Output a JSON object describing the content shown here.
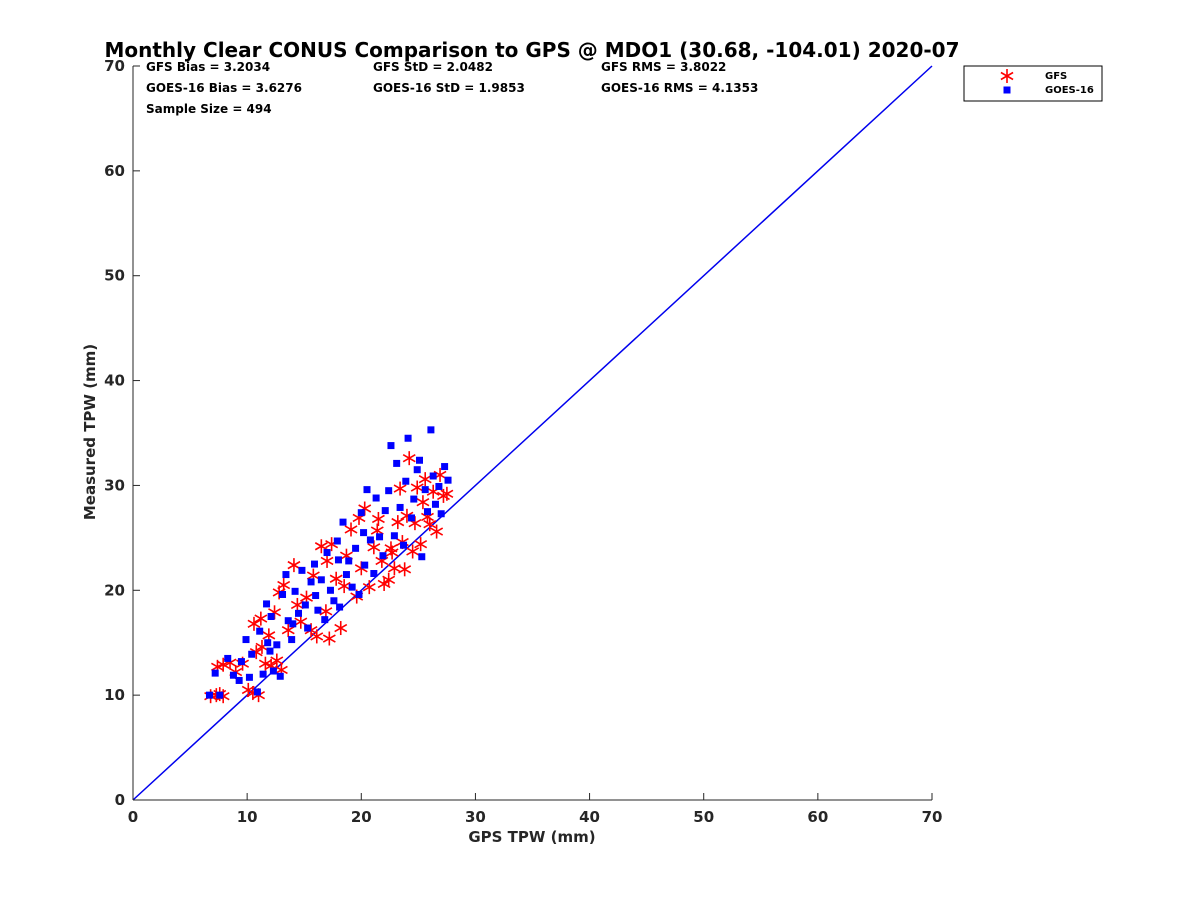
{
  "chart_data": {
    "type": "scatter",
    "title": "Monthly Clear CONUS Comparison to GPS @ MDO1 (30.68, -104.01) 2020-07",
    "xlabel": "GPS TPW (mm)",
    "ylabel": "Measured TPW (mm)",
    "xlim": [
      0,
      70
    ],
    "ylim": [
      0,
      70
    ],
    "xticks": [
      0,
      10,
      20,
      30,
      40,
      50,
      60,
      70
    ],
    "yticks": [
      0,
      10,
      20,
      30,
      40,
      50,
      60,
      70
    ],
    "grid": false,
    "legend_position": "top-right",
    "stats": [
      [
        "GFS Bias = 3.2034",
        "GFS StD = 2.0482",
        "GFS RMS = 3.8022"
      ],
      [
        "GOES-16 Bias = 3.6276",
        "GOES-16 StD = 1.9853",
        "GOES-16 RMS = 4.1353"
      ],
      [
        "Sample Size = 494"
      ]
    ],
    "reference_line": {
      "x": [
        0,
        70
      ],
      "y": [
        0,
        70
      ],
      "color": "#0000ee"
    },
    "series": [
      {
        "name": "GFS",
        "marker": "asterisk",
        "color": "#ff0000",
        "points": [
          [
            6.8,
            9.9
          ],
          [
            7.3,
            10.0
          ],
          [
            7.6,
            10.1
          ],
          [
            7.9,
            9.9
          ],
          [
            7.4,
            12.7
          ],
          [
            7.9,
            12.9
          ],
          [
            8.5,
            13.1
          ],
          [
            9.0,
            12.2
          ],
          [
            9.6,
            13.0
          ],
          [
            10.1,
            10.5
          ],
          [
            10.5,
            10.2
          ],
          [
            11.0,
            10.0
          ],
          [
            10.8,
            14.1
          ],
          [
            11.3,
            14.6
          ],
          [
            11.6,
            13.0
          ],
          [
            12.1,
            12.8
          ],
          [
            12.6,
            13.3
          ],
          [
            13.0,
            12.4
          ],
          [
            10.6,
            16.8
          ],
          [
            11.2,
            17.3
          ],
          [
            11.9,
            15.7
          ],
          [
            12.4,
            17.9
          ],
          [
            12.8,
            19.8
          ],
          [
            13.2,
            20.5
          ],
          [
            13.6,
            16.2
          ],
          [
            14.1,
            22.4
          ],
          [
            14.7,
            17.0
          ],
          [
            15.2,
            19.3
          ],
          [
            15.6,
            16.2
          ],
          [
            16.1,
            15.6
          ],
          [
            16.5,
            24.2
          ],
          [
            16.9,
            18.0
          ],
          [
            17.2,
            15.4
          ],
          [
            17.4,
            24.4
          ],
          [
            17.8,
            21.1
          ],
          [
            18.2,
            16.4
          ],
          [
            18.7,
            23.3
          ],
          [
            19.1,
            25.8
          ],
          [
            19.6,
            19.4
          ],
          [
            20.0,
            22.1
          ],
          [
            20.3,
            27.8
          ],
          [
            20.7,
            20.3
          ],
          [
            21.1,
            24.1
          ],
          [
            21.4,
            25.7
          ],
          [
            21.8,
            22.8
          ],
          [
            22.0,
            20.6
          ],
          [
            22.4,
            21.0
          ],
          [
            22.7,
            23.6
          ],
          [
            22.9,
            22.1
          ],
          [
            23.2,
            26.5
          ],
          [
            23.4,
            29.7
          ],
          [
            23.6,
            24.6
          ],
          [
            23.8,
            22.0
          ],
          [
            24.0,
            27.1
          ],
          [
            24.2,
            32.6
          ],
          [
            24.5,
            23.7
          ],
          [
            24.7,
            26.4
          ],
          [
            24.9,
            29.8
          ],
          [
            25.2,
            24.4
          ],
          [
            25.4,
            28.4
          ],
          [
            25.6,
            30.6
          ],
          [
            25.8,
            27.0
          ],
          [
            26.0,
            26.3
          ],
          [
            26.3,
            29.4
          ],
          [
            26.6,
            25.6
          ],
          [
            26.9,
            31.0
          ],
          [
            27.2,
            29.0
          ],
          [
            27.5,
            29.2
          ],
          [
            21.5,
            26.8
          ],
          [
            22.6,
            24.0
          ],
          [
            19.8,
            26.9
          ],
          [
            18.5,
            20.4
          ],
          [
            17.0,
            22.8
          ],
          [
            15.8,
            21.4
          ],
          [
            14.4,
            18.6
          ]
        ]
      },
      {
        "name": "GOES-16",
        "marker": "square",
        "color": "#0000ff",
        "points": [
          [
            6.7,
            10.0
          ],
          [
            7.6,
            10.0
          ],
          [
            7.2,
            12.1
          ],
          [
            8.3,
            13.5
          ],
          [
            8.8,
            11.9
          ],
          [
            9.3,
            11.4
          ],
          [
            9.5,
            13.2
          ],
          [
            9.9,
            15.3
          ],
          [
            10.2,
            11.7
          ],
          [
            10.4,
            13.9
          ],
          [
            10.9,
            10.3
          ],
          [
            11.1,
            16.1
          ],
          [
            11.4,
            12.0
          ],
          [
            11.7,
            18.7
          ],
          [
            11.8,
            15.0
          ],
          [
            12.1,
            17.5
          ],
          [
            12.3,
            12.3
          ],
          [
            12.6,
            14.8
          ],
          [
            12.9,
            11.8
          ],
          [
            13.1,
            19.6
          ],
          [
            13.4,
            21.5
          ],
          [
            13.6,
            17.1
          ],
          [
            13.9,
            15.3
          ],
          [
            14.2,
            19.9
          ],
          [
            14.5,
            17.8
          ],
          [
            14.8,
            21.9
          ],
          [
            15.1,
            18.6
          ],
          [
            15.3,
            16.4
          ],
          [
            15.6,
            20.8
          ],
          [
            15.9,
            22.5
          ],
          [
            16.2,
            18.1
          ],
          [
            16.5,
            21.0
          ],
          [
            16.8,
            17.2
          ],
          [
            17.0,
            23.6
          ],
          [
            17.3,
            20.0
          ],
          [
            17.6,
            19.0
          ],
          [
            17.9,
            24.7
          ],
          [
            18.1,
            18.4
          ],
          [
            18.4,
            26.5
          ],
          [
            18.7,
            21.5
          ],
          [
            18.9,
            22.8
          ],
          [
            19.2,
            20.3
          ],
          [
            19.5,
            24.0
          ],
          [
            19.8,
            19.6
          ],
          [
            20.0,
            27.4
          ],
          [
            20.3,
            22.4
          ],
          [
            20.5,
            29.6
          ],
          [
            20.8,
            24.8
          ],
          [
            21.1,
            21.6
          ],
          [
            21.3,
            28.8
          ],
          [
            21.6,
            25.1
          ],
          [
            21.9,
            23.3
          ],
          [
            22.1,
            27.6
          ],
          [
            22.4,
            29.5
          ],
          [
            22.6,
            33.8
          ],
          [
            22.9,
            25.2
          ],
          [
            23.1,
            32.1
          ],
          [
            23.4,
            27.9
          ],
          [
            23.7,
            24.3
          ],
          [
            23.9,
            30.4
          ],
          [
            24.1,
            34.5
          ],
          [
            24.4,
            26.9
          ],
          [
            24.6,
            28.7
          ],
          [
            24.9,
            31.5
          ],
          [
            25.1,
            32.4
          ],
          [
            25.3,
            23.2
          ],
          [
            25.6,
            29.6
          ],
          [
            25.8,
            27.5
          ],
          [
            26.1,
            35.3
          ],
          [
            26.3,
            30.9
          ],
          [
            26.5,
            28.2
          ],
          [
            26.8,
            29.9
          ],
          [
            27.0,
            27.3
          ],
          [
            27.3,
            31.8
          ],
          [
            27.6,
            30.5
          ],
          [
            12.0,
            14.2
          ],
          [
            14.0,
            16.8
          ],
          [
            16.0,
            19.5
          ],
          [
            18.0,
            22.9
          ],
          [
            20.2,
            25.5
          ]
        ]
      }
    ]
  }
}
